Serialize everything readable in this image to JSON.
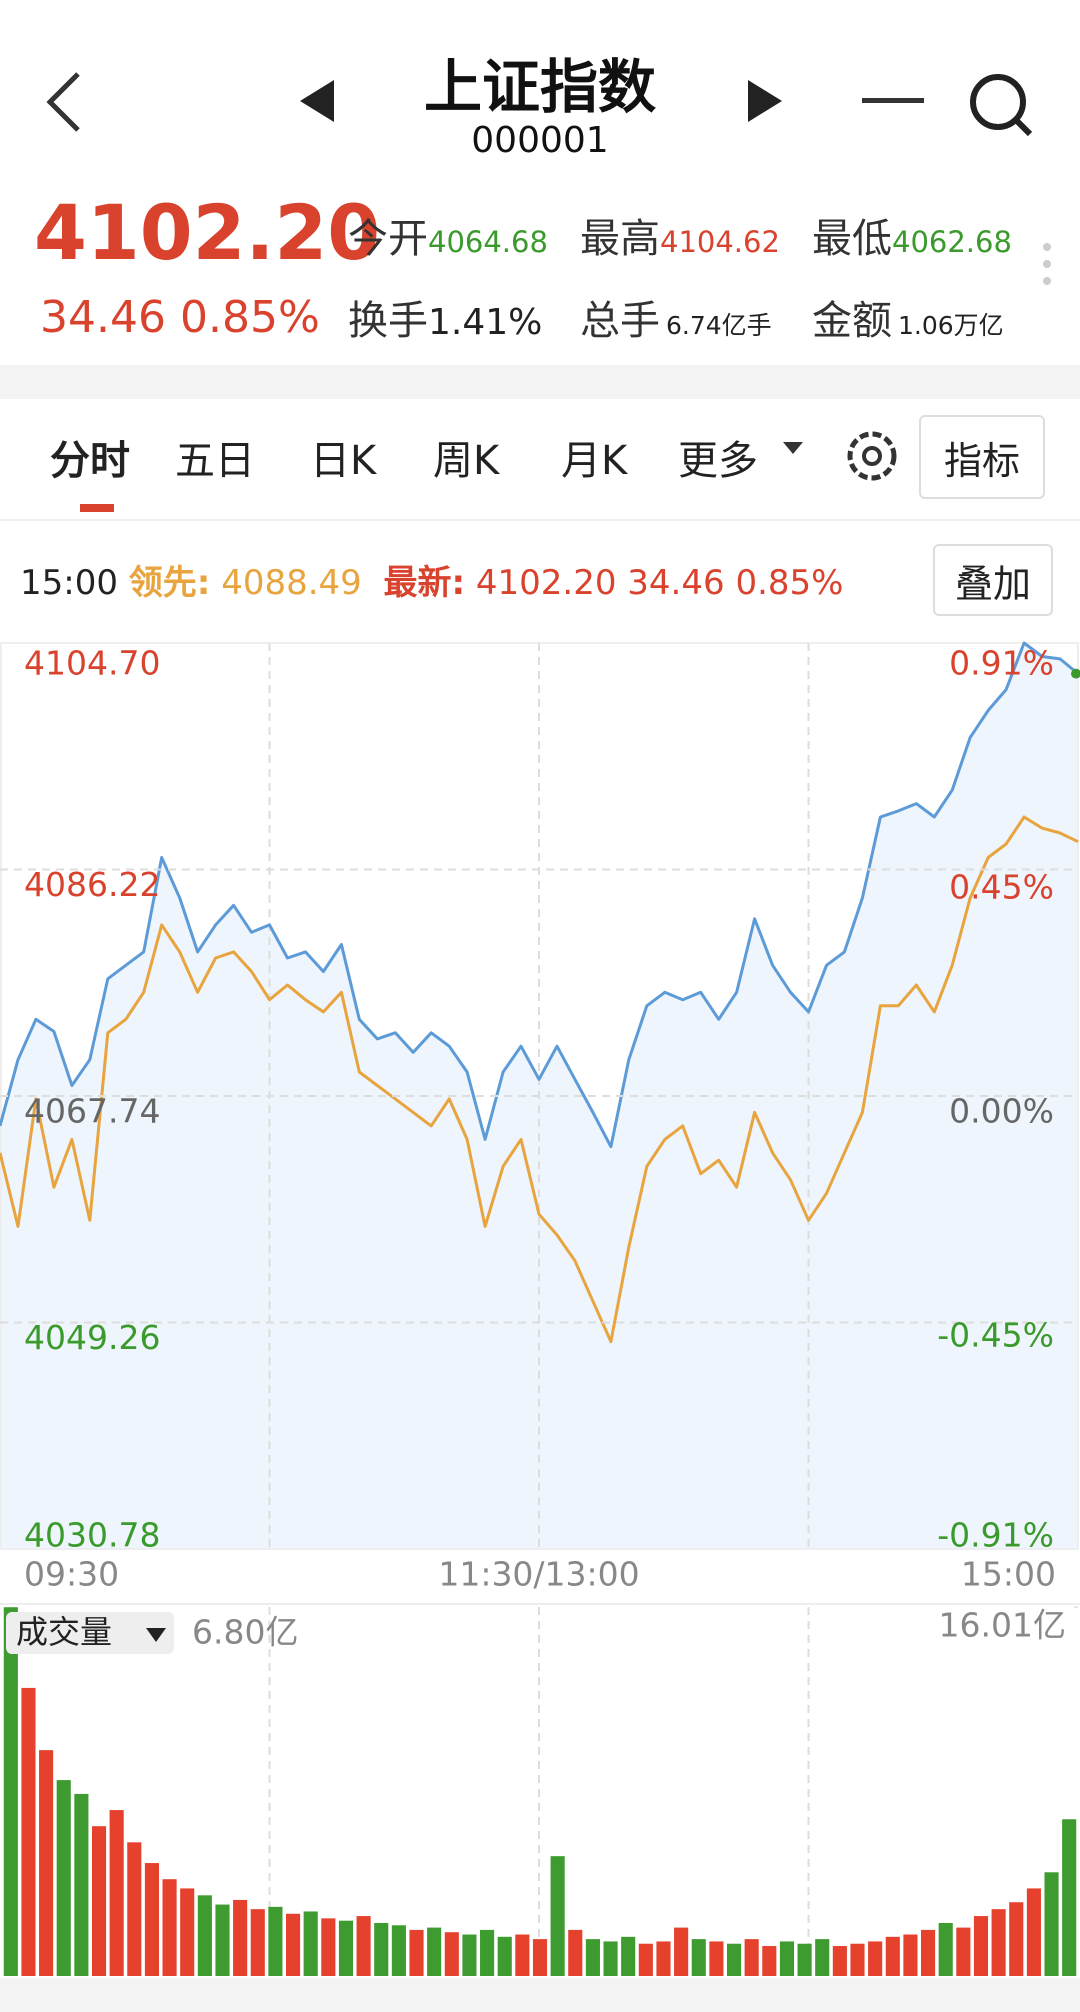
{
  "header": {
    "title": "上证指数",
    "code": "000001",
    "price": "4102.20",
    "change": "34.46",
    "change_pct": "0.85%",
    "stats": [
      {
        "label": "今开",
        "value": "4064.68"
      },
      {
        "label": "最高",
        "value": "4104.62"
      },
      {
        "label": "最低",
        "value": "4062.68"
      },
      {
        "label": "换手",
        "value": "1.41%"
      },
      {
        "label": "总手",
        "value": "6.74亿手"
      },
      {
        "label": "金额",
        "value": "1.06万亿"
      }
    ]
  },
  "tabs": [
    "分时",
    "五日",
    "日K",
    "周K",
    "月K",
    "更多"
  ],
  "indicator_button": "指标",
  "info": {
    "time": "15:00",
    "lead_label": "领先:",
    "lead": "4088.49",
    "latest_label": "最新:",
    "latest": "4102.20",
    "latest_change": "34.46",
    "latest_pct": "0.85%",
    "overlay_button": "叠加"
  },
  "chart_data": [
    {
      "type": "line",
      "categories": [
        "09:30",
        null,
        null,
        null,
        null,
        null,
        null,
        null,
        null,
        null,
        null,
        null,
        null,
        null,
        null,
        null,
        null,
        null,
        null,
        null,
        null,
        null,
        null,
        null,
        null,
        null,
        null,
        null,
        null,
        null,
        "11:30/13:00",
        null,
        null,
        null,
        null,
        null,
        null,
        null,
        null,
        null,
        null,
        null,
        null,
        null,
        null,
        null,
        null,
        null,
        null,
        null,
        null,
        null,
        null,
        null,
        null,
        null,
        null,
        null,
        null,
        null,
        "15:00"
      ],
      "ylim": [
        4030.78,
        4104.7
      ],
      "yticks": [
        {
          "value": 4104.7,
          "label": "4104.70"
        },
        4086.22,
        4067.74,
        4049.26,
        4030.78
      ],
      "y2lim": [
        -0.91,
        0.91
      ],
      "y2ticks": [
        {
          "value": 0.91,
          "label": "0.91%"
        },
        {
          "value": 0.45,
          "label": "0.45%"
        },
        {
          "value": 0,
          "label": "0.00%"
        },
        {
          "value": -0.45,
          "label": "-0.45%"
        },
        {
          "value": -0.91,
          "label": "-0.91%"
        }
      ],
      "grid": true,
      "series": [
        {
          "name": "最新",
          "color": "#5d9bd8",
          "values": [
            4065.3,
            4070.7,
            4074.0,
            4073.0,
            4068.6,
            4070.7,
            4077.3,
            4078.4,
            4079.5,
            4087.2,
            4083.9,
            4079.5,
            4081.7,
            4083.3,
            4081.1,
            4081.7,
            4079.0,
            4079.5,
            4077.9,
            4080.1,
            4074.0,
            4072.4,
            4072.9,
            4071.3,
            4072.9,
            4071.8,
            4069.7,
            4064.2,
            4069.7,
            4071.8,
            4069.1,
            4071.8,
            4069.1,
            4066.4,
            4063.6,
            4070.7,
            4075.1,
            4076.2,
            4075.6,
            4076.2,
            4074.0,
            4076.2,
            4082.2,
            4078.4,
            4076.2,
            4074.6,
            4078.4,
            4079.5,
            4083.9,
            4090.5,
            4091.0,
            4091.6,
            4090.5,
            4092.7,
            4097.0,
            4099.2,
            4100.9,
            4104.7,
            4103.6,
            4103.4,
            4102.2
          ]
        },
        {
          "name": "领先",
          "color": "#e8a43e",
          "values": [
            4063.1,
            4057.1,
            4067.5,
            4060.3,
            4064.2,
            4057.6,
            4072.9,
            4074.0,
            4076.2,
            4081.7,
            4079.5,
            4076.2,
            4079.0,
            4079.5,
            4077.9,
            4075.6,
            4076.8,
            4075.6,
            4074.6,
            4076.2,
            4069.7,
            4068.6,
            4067.5,
            4066.4,
            4065.3,
            4067.5,
            4064.2,
            4057.1,
            4062.0,
            4064.2,
            4058.1,
            4056.4,
            4054.3,
            4051.0,
            4047.7,
            4055.4,
            4062.0,
            4064.2,
            4065.3,
            4061.4,
            4062.5,
            4060.3,
            4066.4,
            4063.1,
            4060.9,
            4057.6,
            4059.8,
            4063.1,
            4066.4,
            4075.1,
            4075.1,
            4076.8,
            4074.6,
            4078.4,
            4083.9,
            4087.2,
            4088.3,
            4090.5,
            4089.6,
            4089.2,
            4088.49
          ]
        }
      ]
    },
    {
      "type": "bar",
      "title": "成交量",
      "subtitle": "6.80亿",
      "ylim": [
        0,
        16.01
      ],
      "yticks": [
        {
          "value": 16.01,
          "label": "16.01亿"
        }
      ],
      "values": [
        16.0,
        12.5,
        9.8,
        8.5,
        7.9,
        6.5,
        7.2,
        5.8,
        4.9,
        4.2,
        3.8,
        3.5,
        3.1,
        3.3,
        2.9,
        3.0,
        2.7,
        2.8,
        2.5,
        2.4,
        2.6,
        2.3,
        2.2,
        2.0,
        2.1,
        1.9,
        1.8,
        2.0,
        1.7,
        1.8,
        1.6,
        5.2,
        2.0,
        1.6,
        1.5,
        1.7,
        1.4,
        1.5,
        2.1,
        1.6,
        1.5,
        1.4,
        1.6,
        1.3,
        1.5,
        1.4,
        1.6,
        1.3,
        1.4,
        1.5,
        1.7,
        1.8,
        2.0,
        2.3,
        2.1,
        2.6,
        2.9,
        3.2,
        3.8,
        4.5,
        6.8
      ],
      "colors": [
        "#3d9b2f",
        "#e5412d",
        "#e5412d",
        "#3d9b2f",
        "#3d9b2f",
        "#e5412d",
        "#e5412d",
        "#e5412d",
        "#e5412d",
        "#e5412d",
        "#e5412d",
        "#3d9b2f",
        "#3d9b2f",
        "#e5412d",
        "#e5412d",
        "#3d9b2f",
        "#e5412d",
        "#3d9b2f",
        "#e5412d",
        "#3d9b2f",
        "#e5412d",
        "#3d9b2f",
        "#3d9b2f",
        "#e5412d",
        "#3d9b2f",
        "#e5412d",
        "#3d9b2f",
        "#3d9b2f",
        "#3d9b2f",
        "#e5412d",
        "#e5412d",
        "#3d9b2f",
        "#e5412d",
        "#3d9b2f",
        "#3d9b2f",
        "#3d9b2f",
        "#e5412d",
        "#e5412d",
        "#e5412d",
        "#3d9b2f",
        "#e5412d",
        "#3d9b2f",
        "#e5412d",
        "#e5412d",
        "#3d9b2f",
        "#3d9b2f",
        "#3d9b2f",
        "#e5412d",
        "#e5412d",
        "#e5412d",
        "#e5412d",
        "#e5412d",
        "#e5412d",
        "#3d9b2f",
        "#e5412d",
        "#e5412d",
        "#e5412d",
        "#e5412d",
        "#e5412d",
        "#3d9b2f",
        "#3d9b2f"
      ]
    }
  ]
}
